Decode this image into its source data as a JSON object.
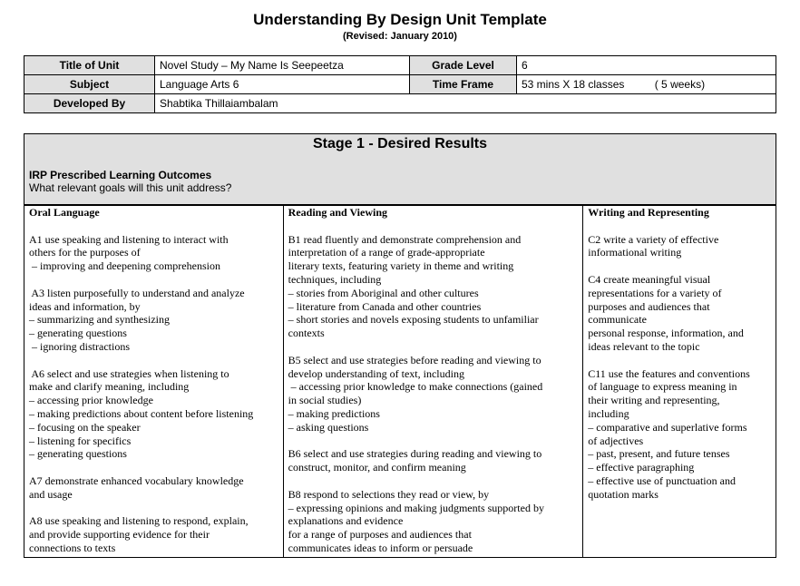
{
  "title": "Understanding By Design Unit Template",
  "subtitle": "(Revised: January 2010)",
  "info": {
    "title_label": "Title of Unit",
    "title_value": "Novel Study – My Name Is Seepeetza",
    "grade_label": "Grade Level",
    "grade_value": "6",
    "subject_label": "Subject",
    "subject_value": "Language Arts 6",
    "time_label": "Time Frame",
    "time_value": "53 mins X 18 classes          ( 5 weeks)",
    "dev_label": "Developed By",
    "dev_value": "Shabtika Thillaiambalam"
  },
  "stage": {
    "title": "Stage 1 - Desired Results",
    "irp_heading": "IRP Prescribed Learning Outcomes",
    "irp_question": "What relevant goals will this unit address?"
  },
  "columns": [
    {
      "heading": "Oral Language",
      "lines": [
        "A1 use speaking and listening to interact with",
        "others for the purposes of",
        " – improving and deepening comprehension",
        "",
        " A3 listen purposefully to understand and analyze",
        "ideas and information, by",
        "– summarizing and synthesizing",
        "– generating questions",
        " – ignoring distractions",
        "",
        " A6 select and use strategies when listening to",
        "make and clarify meaning, including",
        "– accessing prior knowledge",
        "– making predictions about content before listening",
        "– focusing on the speaker",
        "– listening for specifics",
        "– generating questions",
        "",
        "A7 demonstrate enhanced vocabulary knowledge",
        "and usage",
        "",
        "A8 use speaking and listening to respond, explain,",
        "and provide supporting evidence for their",
        "connections to texts"
      ]
    },
    {
      "heading": "Reading and Viewing",
      "lines": [
        "B1 read fluently and demonstrate comprehension and",
        "interpretation of a range of grade-appropriate",
        "literary texts, featuring variety in theme and writing",
        "techniques, including",
        "– stories from Aboriginal and other cultures",
        "– literature from Canada and other countries",
        "– short stories and novels exposing students to unfamiliar",
        "contexts",
        "",
        "B5 select and use strategies before reading and viewing to",
        "develop understanding of text, including",
        " – accessing prior knowledge to make connections (gained",
        "in social studies)",
        "– making predictions",
        "– asking questions",
        "",
        "B6 select and use strategies during reading and viewing to",
        "construct, monitor, and confirm meaning",
        "",
        "B8 respond to selections they read or view, by",
        "– expressing opinions and making judgments supported by",
        "explanations and evidence",
        "for a range of purposes and audiences that",
        "communicates ideas to inform or persuade"
      ]
    },
    {
      "heading": "Writing and Representing",
      "lines": [
        "C2 write a variety of effective",
        "informational writing",
        "",
        "C4 create meaningful visual",
        "representations for a variety of",
        "purposes and audiences that",
        "communicate",
        "personal response, information, and",
        "ideas relevant to the topic",
        "",
        "C11 use the features and conventions",
        "of language to express meaning in",
        "their writing and representing,",
        "including",
        "– comparative and superlative forms",
        "of adjectives",
        "– past, present, and future tenses",
        "– effective paragraphing",
        "– effective use of punctuation and",
        "quotation marks"
      ]
    }
  ]
}
